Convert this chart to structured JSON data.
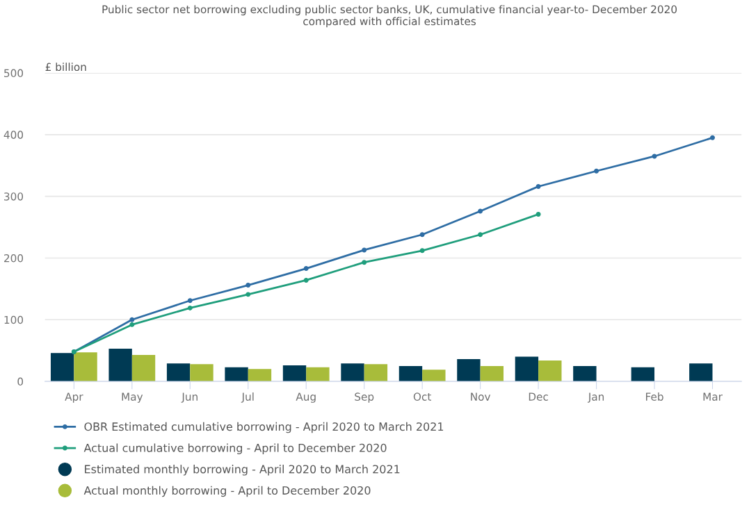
{
  "chart_data": {
    "type": "bar",
    "title": "Public sector net borrowing excluding public sector banks, UK, cumulative financial year-to- December 2020\ncompared with official estimates",
    "ylabel": "£ billion",
    "categories": [
      "Apr",
      "May",
      "Jun",
      "Jul",
      "Aug",
      "Sep",
      "Oct",
      "Nov",
      "Dec",
      "Jan",
      "Feb",
      "Mar"
    ],
    "series": [
      {
        "name": "OBR Estimated cumulative borrowing - April 2020 to March 2021",
        "type": "line",
        "color": "#2e6da4",
        "marker": "circle",
        "values": [
          48,
          100,
          131,
          156,
          183,
          213,
          238,
          276,
          316,
          341,
          365,
          395
        ]
      },
      {
        "name": "Actual cumulative borrowing - April to December 2020",
        "type": "line",
        "color": "#1f9e7c",
        "marker": "circle",
        "values": [
          48,
          92,
          119,
          141,
          164,
          193,
          212,
          238,
          271,
          null,
          null,
          null
        ]
      },
      {
        "name": "Estimated monthly borrowing - April 2020 to March 2021",
        "color": "#003a54",
        "values": [
          46,
          53,
          29,
          23,
          26,
          29,
          25,
          36,
          40,
          25,
          23,
          29
        ]
      },
      {
        "name": "Actual monthly borrowing - April to December 2020",
        "color": "#a8bc3a",
        "values": [
          47,
          43,
          28,
          20,
          23,
          28,
          19,
          25,
          34,
          null,
          null,
          null
        ]
      }
    ],
    "ylim": [
      0,
      500
    ],
    "yticks": [
      0,
      100,
      200,
      300,
      400,
      500
    ],
    "grid": "y",
    "legend": "bottom"
  }
}
